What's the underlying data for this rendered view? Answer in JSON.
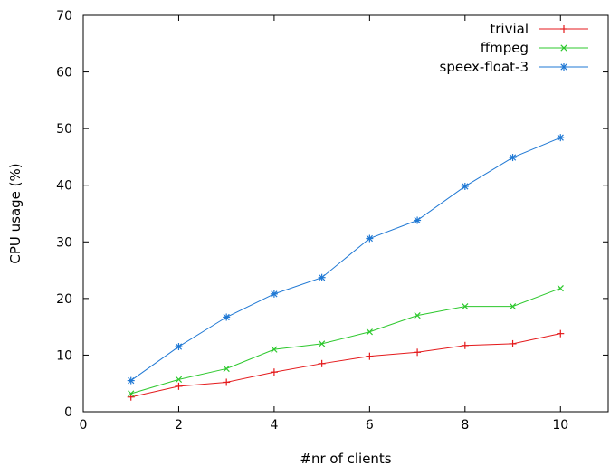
{
  "chart_data": {
    "type": "line",
    "title": "",
    "xlabel": "#nr of clients",
    "ylabel": "CPU usage (%)",
    "xlim": [
      0,
      11
    ],
    "ylim": [
      0,
      70
    ],
    "xticks": [
      0,
      2,
      4,
      6,
      8,
      10
    ],
    "yticks": [
      0,
      10,
      20,
      30,
      40,
      50,
      60,
      70
    ],
    "grid": false,
    "legend_position": "top-right",
    "x": [
      1,
      2,
      3,
      4,
      5,
      6,
      7,
      8,
      9,
      10
    ],
    "series": [
      {
        "name": "trivial",
        "color": "#e41a1c",
        "marker": "plus",
        "values": [
          2.6,
          4.5,
          5.2,
          7.0,
          8.5,
          9.8,
          10.5,
          11.7,
          12.0,
          13.8
        ]
      },
      {
        "name": "ffmpeg",
        "color": "#2cc82c",
        "marker": "cross",
        "values": [
          3.2,
          5.7,
          7.6,
          11.0,
          12.0,
          14.1,
          17.0,
          18.6,
          18.6,
          21.8
        ]
      },
      {
        "name": "speex-float-3",
        "color": "#1f78d4",
        "marker": "star",
        "values": [
          5.5,
          11.5,
          16.7,
          20.8,
          23.7,
          30.6,
          33.8,
          39.8,
          44.9,
          48.4
        ]
      }
    ]
  }
}
